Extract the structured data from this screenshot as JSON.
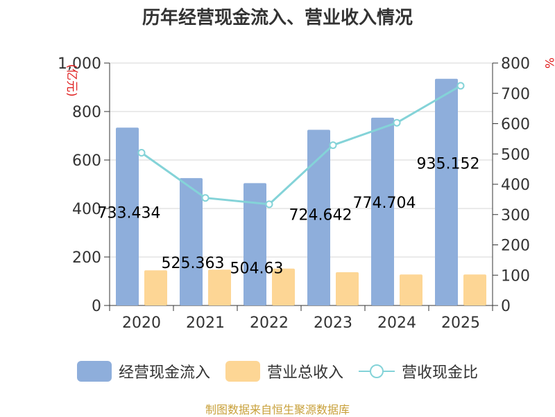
{
  "chart_data": {
    "type": "bar+line",
    "title": "历年经营现金流入、营业收入情况",
    "categories": [
      "2020",
      "2021",
      "2022",
      "2023",
      "2024",
      "2025"
    ],
    "series": [
      {
        "name": "经营现金流入",
        "type": "bar",
        "axis": "left",
        "color": "#8eaedb",
        "values": [
          733.434,
          525.363,
          504.63,
          724.642,
          774.704,
          935.152
        ],
        "data_labels": [
          "733.434",
          "525.363",
          "504.63",
          "724.642",
          "774.704",
          "935.152"
        ]
      },
      {
        "name": "营业总收入",
        "type": "bar",
        "axis": "left",
        "color": "#fdd695",
        "values": [
          145,
          148,
          152,
          137,
          128,
          128
        ]
      },
      {
        "name": "营收现金比",
        "type": "line",
        "axis": "right",
        "color": "#84d3d8",
        "values": [
          504,
          355,
          334,
          529,
          603,
          725
        ]
      }
    ],
    "y_left": {
      "label": "(亿元)",
      "min": 0,
      "max": 1000,
      "ticks": [
        0,
        200,
        400,
        600,
        800,
        1000
      ],
      "tick_labels": [
        "0",
        "200",
        "400",
        "600",
        "800",
        "1,000"
      ]
    },
    "y_right": {
      "label": "%",
      "min": 0,
      "max": 800,
      "ticks": [
        0,
        100,
        200,
        300,
        400,
        500,
        600,
        700,
        800
      ],
      "tick_labels": [
        "0",
        "100",
        "200",
        "300",
        "400",
        "500",
        "600",
        "700",
        "800"
      ]
    },
    "grid": true,
    "legend_position": "bottom"
  },
  "footer": "制图数据来自恒生聚源数据库"
}
